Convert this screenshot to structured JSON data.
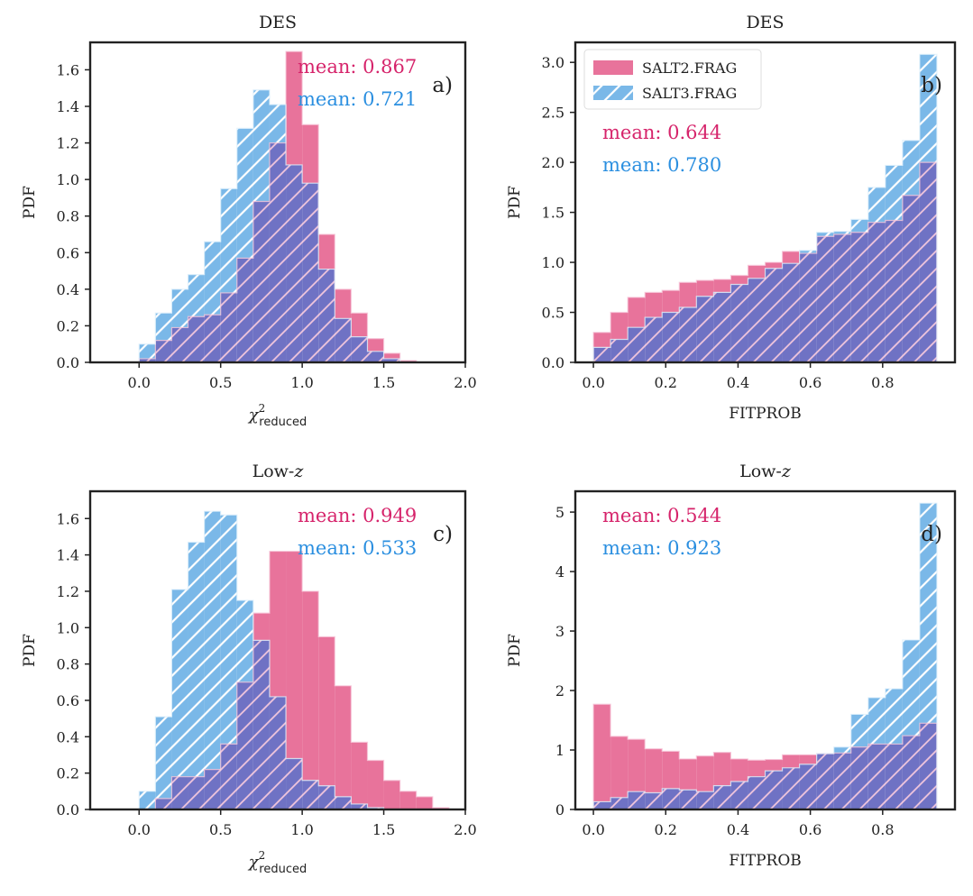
{
  "figure": {
    "colors": {
      "salt2": "#e8739b",
      "salt3": "#7ab8e8",
      "overlap": "#6f72c4",
      "hatch": "#ffffff",
      "salt2_text": "#d6246b",
      "salt3_text": "#2b8fe0"
    }
  },
  "chart_data": [
    {
      "type": "bar",
      "panel_label": "a)",
      "title": "DES",
      "xlabel": "χ²reduced",
      "xlabel_main": "χ",
      "xlabel_sup": "2",
      "xlabel_sub": "reduced",
      "ylabel": "PDF",
      "xlim": [
        -0.3,
        2.0
      ],
      "ylim": [
        0,
        1.75
      ],
      "xticks": [
        0.0,
        0.5,
        1.0,
        1.5,
        2.0
      ],
      "xtick_labels": [
        "0.0",
        "0.5",
        "1.0",
        "1.5",
        "2.0"
      ],
      "yticks": [
        0.0,
        0.2,
        0.4,
        0.6,
        0.8,
        1.0,
        1.2,
        1.4,
        1.6
      ],
      "ytick_labels": [
        "0.0",
        "0.2",
        "0.4",
        "0.6",
        "0.8",
        "1.0",
        "1.2",
        "1.4",
        "1.6"
      ],
      "bin_edges": [
        0.0,
        0.1,
        0.2,
        0.3,
        0.4,
        0.5,
        0.6,
        0.7,
        0.8,
        0.9,
        1.0,
        1.1,
        1.2,
        1.3,
        1.4,
        1.5,
        1.6,
        1.7
      ],
      "series": [
        {
          "name": "SALT2.FRAG",
          "values": [
            0.02,
            0.12,
            0.19,
            0.25,
            0.26,
            0.38,
            0.57,
            0.88,
            1.2,
            1.7,
            1.3,
            0.7,
            0.4,
            0.27,
            0.13,
            0.05,
            0.01
          ]
        },
        {
          "name": "SALT3.FRAG",
          "values": [
            0.1,
            0.27,
            0.4,
            0.48,
            0.66,
            0.95,
            1.28,
            1.49,
            1.41,
            1.08,
            0.98,
            0.51,
            0.24,
            0.14,
            0.06,
            0.02,
            0.0
          ]
        }
      ],
      "annotations": [
        {
          "text": "mean: 0.867",
          "series": "SALT2.FRAG"
        },
        {
          "text": "mean: 0.721",
          "series": "SALT3.FRAG"
        }
      ]
    },
    {
      "type": "bar",
      "panel_label": "b)",
      "title": "DES",
      "xlabel": "FITPROB",
      "ylabel": "PDF",
      "xlim": [
        -0.05,
        1.0
      ],
      "ylim": [
        0,
        3.2
      ],
      "xticks": [
        0.0,
        0.2,
        0.4,
        0.6,
        0.8
      ],
      "xtick_labels": [
        "0.0",
        "0.2",
        "0.4",
        "0.6",
        "0.8"
      ],
      "yticks": [
        0.0,
        0.5,
        1.0,
        1.5,
        2.0,
        2.5,
        3.0
      ],
      "ytick_labels": [
        "0.0",
        "0.5",
        "1.0",
        "1.5",
        "2.0",
        "2.5",
        "3.0"
      ],
      "bin_edges": [
        0.0,
        0.0475,
        0.095,
        0.1425,
        0.19,
        0.2375,
        0.285,
        0.3325,
        0.38,
        0.4275,
        0.475,
        0.5225,
        0.57,
        0.6175,
        0.665,
        0.7125,
        0.76,
        0.8075,
        0.855,
        0.9025,
        0.95
      ],
      "series": [
        {
          "name": "SALT2.FRAG",
          "values": [
            0.3,
            0.5,
            0.65,
            0.7,
            0.72,
            0.8,
            0.82,
            0.83,
            0.87,
            0.97,
            1.0,
            1.11,
            1.09,
            1.26,
            1.28,
            1.3,
            1.4,
            1.42,
            1.67,
            2.0
          ]
        },
        {
          "name": "SALT3.FRAG",
          "values": [
            0.15,
            0.23,
            0.35,
            0.45,
            0.5,
            0.55,
            0.66,
            0.7,
            0.78,
            0.84,
            0.94,
            0.99,
            1.12,
            1.3,
            1.31,
            1.43,
            1.75,
            1.97,
            2.22,
            3.08
          ]
        }
      ],
      "legend": {
        "position": "top-left",
        "entries": [
          "SALT2.FRAG",
          "SALT3.FRAG"
        ]
      },
      "annotations": [
        {
          "text": "mean: 0.644",
          "series": "SALT2.FRAG"
        },
        {
          "text": "mean: 0.780",
          "series": "SALT3.FRAG"
        }
      ]
    },
    {
      "type": "bar",
      "panel_label": "c)",
      "title": "Low-z",
      "title_main": "Low-",
      "title_italic": "z",
      "xlabel": "χ²reduced",
      "xlabel_main": "χ",
      "xlabel_sup": "2",
      "xlabel_sub": "reduced",
      "ylabel": "PDF",
      "xlim": [
        -0.3,
        2.0
      ],
      "ylim": [
        0,
        1.75
      ],
      "xticks": [
        0.0,
        0.5,
        1.0,
        1.5,
        2.0
      ],
      "xtick_labels": [
        "0.0",
        "0.5",
        "1.0",
        "1.5",
        "2.0"
      ],
      "yticks": [
        0.0,
        0.2,
        0.4,
        0.6,
        0.8,
        1.0,
        1.2,
        1.4,
        1.6
      ],
      "ytick_labels": [
        "0.0",
        "0.2",
        "0.4",
        "0.6",
        "0.8",
        "1.0",
        "1.2",
        "1.4",
        "1.6"
      ],
      "bin_edges": [
        0.0,
        0.1,
        0.2,
        0.3,
        0.4,
        0.5,
        0.6,
        0.7,
        0.8,
        0.9,
        1.0,
        1.1,
        1.2,
        1.3,
        1.4,
        1.5,
        1.6,
        1.7,
        1.8,
        1.9
      ],
      "series": [
        {
          "name": "SALT2.FRAG",
          "values": [
            0.0,
            0.06,
            0.18,
            0.18,
            0.22,
            0.36,
            0.7,
            1.08,
            1.42,
            1.42,
            1.2,
            0.95,
            0.68,
            0.37,
            0.27,
            0.16,
            0.1,
            0.07,
            0.01
          ]
        },
        {
          "name": "SALT3.FRAG",
          "values": [
            0.1,
            0.51,
            1.21,
            1.47,
            1.64,
            1.62,
            1.15,
            0.93,
            0.62,
            0.28,
            0.16,
            0.13,
            0.07,
            0.03,
            0.01,
            0.0,
            0.0,
            0.0,
            0.0
          ]
        }
      ],
      "annotations": [
        {
          "text": "mean: 0.949",
          "series": "SALT2.FRAG"
        },
        {
          "text": "mean: 0.533",
          "series": "SALT3.FRAG"
        }
      ]
    },
    {
      "type": "bar",
      "panel_label": "d)",
      "title": "Low-z",
      "title_main": "Low-",
      "title_italic": "z",
      "xlabel": "FITPROB",
      "ylabel": "PDF",
      "xlim": [
        -0.05,
        1.0
      ],
      "ylim": [
        0,
        5.35
      ],
      "xticks": [
        0.0,
        0.2,
        0.4,
        0.6,
        0.8
      ],
      "xtick_labels": [
        "0.0",
        "0.2",
        "0.4",
        "0.6",
        "0.8"
      ],
      "yticks": [
        0,
        1,
        2,
        3,
        4,
        5
      ],
      "ytick_labels": [
        "0",
        "1",
        "2",
        "3",
        "4",
        "5"
      ],
      "bin_edges": [
        0.0,
        0.0475,
        0.095,
        0.1425,
        0.19,
        0.2375,
        0.285,
        0.3325,
        0.38,
        0.4275,
        0.475,
        0.5225,
        0.57,
        0.6175,
        0.665,
        0.7125,
        0.76,
        0.8075,
        0.855,
        0.9025,
        0.95
      ],
      "series": [
        {
          "name": "SALT2.FRAG",
          "values": [
            1.77,
            1.23,
            1.18,
            1.02,
            0.98,
            0.85,
            0.9,
            0.96,
            0.85,
            0.83,
            0.84,
            0.92,
            0.92,
            0.94,
            0.95,
            1.05,
            1.1,
            1.1,
            1.24,
            1.45
          ]
        },
        {
          "name": "SALT3.FRAG",
          "values": [
            0.13,
            0.2,
            0.3,
            0.28,
            0.35,
            0.33,
            0.3,
            0.4,
            0.47,
            0.55,
            0.65,
            0.7,
            0.76,
            0.94,
            1.05,
            1.6,
            1.88,
            2.03,
            2.85,
            5.15
          ]
        }
      ],
      "annotations": [
        {
          "text": "mean: 0.544",
          "series": "SALT2.FRAG"
        },
        {
          "text": "mean: 0.923",
          "series": "SALT3.FRAG"
        }
      ]
    }
  ]
}
